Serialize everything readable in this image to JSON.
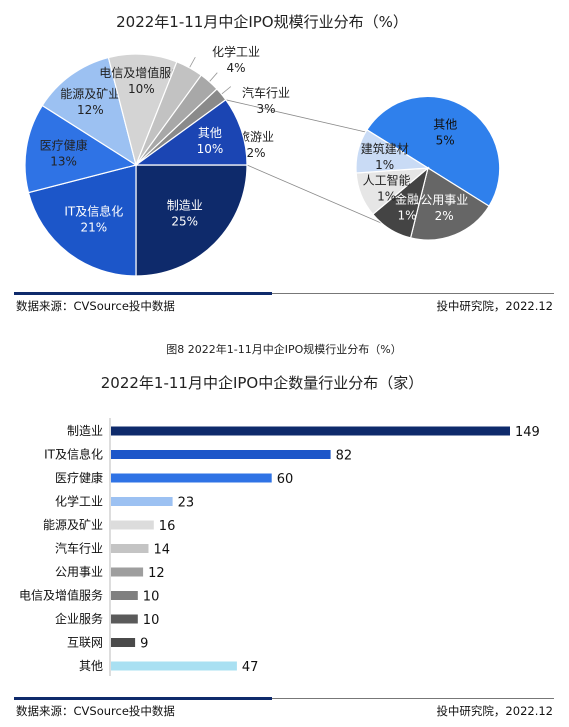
{
  "caption": "图8 2022年1-11月中企IPO规模行业分布（%）",
  "chart_data": [
    {
      "type": "pie",
      "title": "2022年1-11月中企IPO规模行业分布（%）",
      "series": [
        {
          "name": "制造业",
          "value": 25,
          "label_value": "25%",
          "color": "#0e2a6b",
          "label_color": "#ffffff"
        },
        {
          "name": "IT及信息化",
          "value": 21,
          "label_value": "21%",
          "color": "#1c56c9",
          "label_color": "#ffffff"
        },
        {
          "name": "医疗健康",
          "value": 13,
          "label_value": "13%",
          "color": "#2f73e5",
          "label_color": "#222222"
        },
        {
          "name": "能源及矿业",
          "value": 12,
          "label_value": "12%",
          "color": "#9cc1f2",
          "label_color": "#222222"
        },
        {
          "name": "电信及增值服务",
          "value": 10,
          "label_value": "10%",
          "color": "#d4d4d4",
          "label_color": "#222222"
        },
        {
          "name": "化学工业",
          "value": 4,
          "label_value": "4%",
          "color": "#c2c2c2",
          "label_color": "#222222"
        },
        {
          "name": "汽车行业",
          "value": 3,
          "label_value": "3%",
          "color": "#a8a8a8",
          "label_color": "#222222"
        },
        {
          "name": "旅游业",
          "value": 2,
          "label_value": "2%",
          "color": "#8a8a8a",
          "label_color": "#222222"
        },
        {
          "name": "其他",
          "value": 10,
          "label_value": "10%",
          "color": "#1b45b3",
          "label_color": "#ffffff"
        }
      ],
      "breakout": {
        "of": "其他",
        "series": [
          {
            "name": "其他",
            "value": 5,
            "label_value": "5%",
            "color": "#2f80ec",
            "label_color": "#111111"
          },
          {
            "name": "公用事业",
            "value": 2,
            "label_value": "2%",
            "color": "#666666",
            "label_color": "#ffffff"
          },
          {
            "name": "金融",
            "value": 1,
            "label_value": "1%",
            "color": "#444444",
            "label_color": "#ffffff"
          },
          {
            "name": "人工智能",
            "value": 1,
            "label_value": "1%",
            "color": "#e6e6e6",
            "label_color": "#222222"
          },
          {
            "name": "建筑建材",
            "value": 1,
            "label_value": "1%",
            "color": "#c9dbf5",
            "label_color": "#222222"
          }
        ]
      },
      "source": "数据来源：CVSource投中数据",
      "credit": "投中研究院，2022.12"
    },
    {
      "type": "bar",
      "orientation": "horizontal",
      "title": "2022年1-11月中企IPO中企数量行业分布（家）",
      "categories": [
        "制造业",
        "IT及信息化",
        "医疗健康",
        "化学工业",
        "能源及矿业",
        "汽车行业",
        "公用事业",
        "电信及增值服务",
        "企业服务",
        "互联网",
        "其他"
      ],
      "values": [
        149,
        82,
        60,
        23,
        16,
        14,
        12,
        10,
        10,
        9,
        47
      ],
      "colors": [
        "#0e2a6b",
        "#1c56c9",
        "#2f73e5",
        "#9cc1f2",
        "#dcdcdc",
        "#c4c4c4",
        "#9e9e9e",
        "#7f7f7f",
        "#5a5a5a",
        "#4a4a4a",
        "#a9e0f2"
      ],
      "xlim": [
        0,
        149
      ],
      "source": "数据来源：CVSource投中数据",
      "credit": "投中研究院，2022.12"
    }
  ]
}
